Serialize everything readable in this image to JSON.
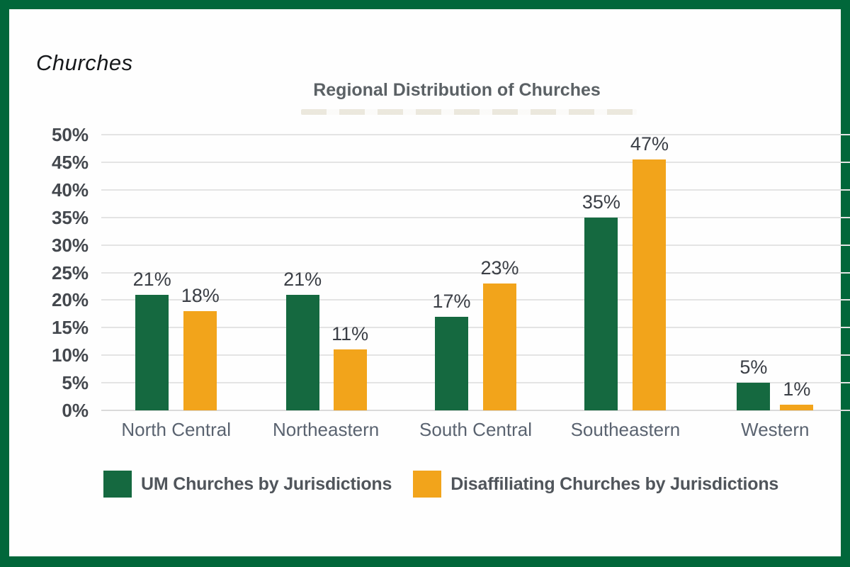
{
  "frame": {
    "border_color": "#01673A",
    "background": "#FEFEFE"
  },
  "page_label": "Churches",
  "chart_data": {
    "type": "bar",
    "title": "Regional Distribution of Churches",
    "categories": [
      "North Central",
      "Northeastern",
      "South Central",
      "Southeastern",
      "Western"
    ],
    "series": [
      {
        "name": "UM Churches by Jurisdictions",
        "color": "#156940",
        "values": [
          21,
          21,
          17,
          35,
          5
        ]
      },
      {
        "name": "Disaffiliating Churches by Jurisdictions",
        "color": "#F2A41B",
        "values": [
          18,
          11,
          23,
          47,
          1
        ]
      }
    ],
    "value_suffix": "%",
    "y_ticks": [
      "50%",
      "45%",
      "40%",
      "35%",
      "30%",
      "25%",
      "20%",
      "15%",
      "10%",
      "5%",
      "0%"
    ],
    "ylim": [
      0,
      50
    ],
    "grid": "horizontal",
    "legend_position": "bottom",
    "data_labels": true
  }
}
